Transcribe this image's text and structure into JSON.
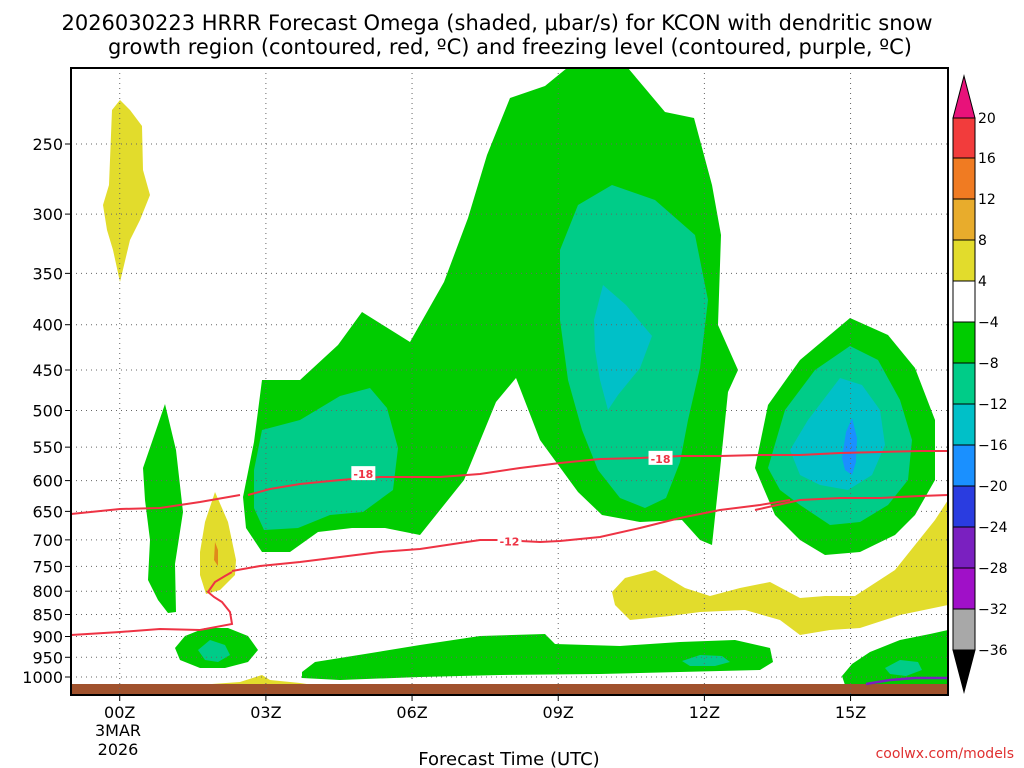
{
  "chart_data": {
    "type": "contour-time-height",
    "title_line1": "2026030223 HRRR Forecast Omega (shaded, μbar/s) for KCON with dendritic snow",
    "title_line2": "growth region (contoured, red, ºC) and freezing level (contoured, purple, ºC)",
    "xlabel": "Forecast Time (UTC)",
    "x_range_hours": [
      -1.0,
      17.0
    ],
    "x_ticks": [
      {
        "hour": 0,
        "label": "00Z"
      },
      {
        "hour": 3,
        "label": "03Z"
      },
      {
        "hour": 6,
        "label": "06Z"
      },
      {
        "hour": 9,
        "label": "09Z"
      },
      {
        "hour": 12,
        "label": "12Z"
      },
      {
        "hour": 15,
        "label": "15Z"
      }
    ],
    "x_date_label_1": "3MAR",
    "x_date_label_2": "2026",
    "y_ticks_hpa": [
      250,
      300,
      350,
      400,
      450,
      500,
      550,
      600,
      650,
      700,
      750,
      800,
      850,
      900,
      950,
      1000
    ],
    "y_tick_labels": [
      "250",
      "300",
      "350",
      "400",
      "450",
      "500",
      "550",
      "600",
      "650",
      "700",
      "750",
      "800",
      "850",
      "900",
      "950",
      "1000"
    ],
    "colorbar_labels": [
      "20",
      "16",
      "12",
      "8",
      "4",
      "−4",
      "−8",
      "−12",
      "−16",
      "−20",
      "−24",
      "−28",
      "−32",
      "−36"
    ],
    "contour_labels": [
      {
        "text": "-18",
        "hour": 5.0,
        "hpa": 590
      },
      {
        "text": "-18",
        "hour": 11.1,
        "hpa": 567
      },
      {
        "text": "-12",
        "hour": 8.0,
        "hpa": 703
      }
    ],
    "credit": "coolwx.com/models",
    "colors": {
      "green": "#00cc00",
      "teal": "#00cc88",
      "cyan": "#00c0c8",
      "blue": "#1a90ff",
      "yellow": "#e2dc2c",
      "orange": "#e08a1a",
      "red_contour": "#ee3344",
      "purple_contour": "#7a20c0",
      "ground": "#a0522d"
    }
  }
}
